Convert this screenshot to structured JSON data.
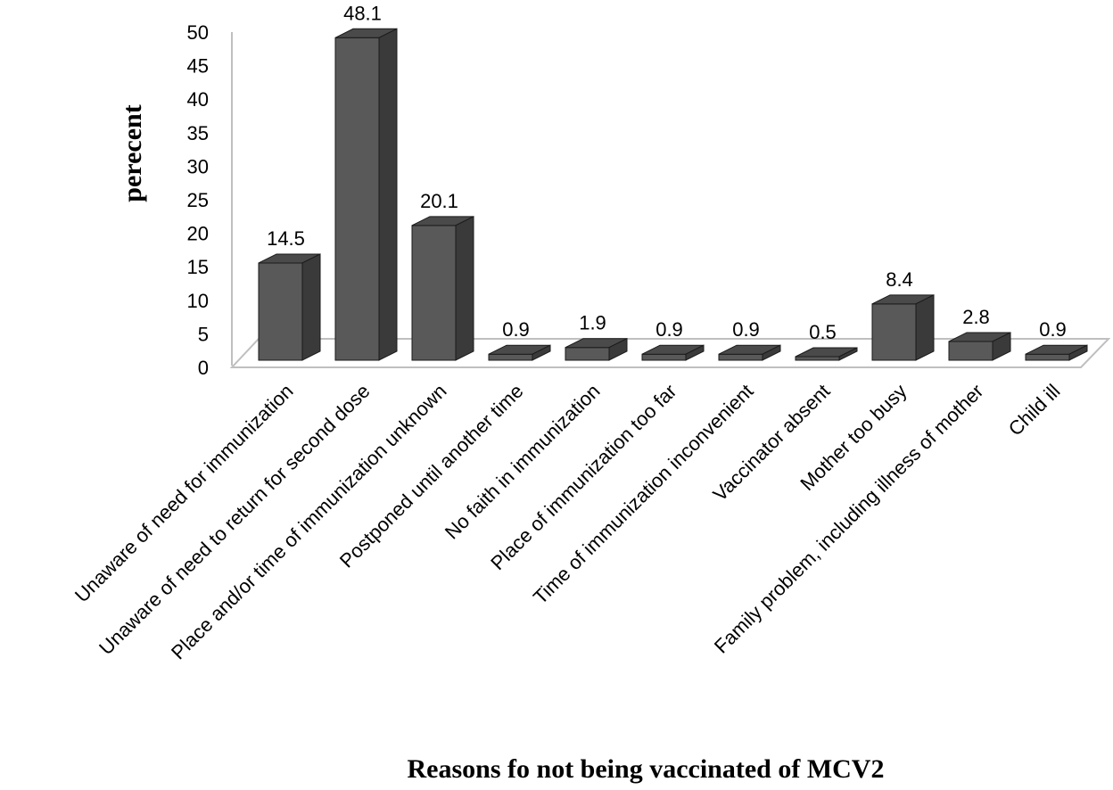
{
  "chart_data": {
    "type": "bar",
    "title": "",
    "xlabel": "Reasons fo not being vaccinated of MCV2",
    "ylabel": "perecent",
    "ylim": [
      0,
      50
    ],
    "yticks": [
      0,
      5,
      10,
      15,
      20,
      25,
      30,
      35,
      40,
      45,
      50
    ],
    "grid": false,
    "legend": "none",
    "bar_color": "#595959",
    "categories": [
      "Unaware of need for immunization",
      "Unaware of need to return for second dose",
      "Place and/or time of immunization unknown",
      "Postponed until another time",
      "No faith in immunization",
      "Place of immunization too far",
      "Time of immunization inconvenient",
      "Vaccinator absent",
      "Mother too busy",
      "Family problem, including illness of mother",
      "Child ill"
    ],
    "values": [
      14.5,
      48.1,
      20.1,
      0.9,
      1.9,
      0.9,
      0.9,
      0.5,
      8.4,
      2.8,
      0.9
    ],
    "data_labels": [
      "14.5",
      "48.1",
      "20.1",
      "0.9",
      "1.9",
      "0.9",
      "0.9",
      "0.5",
      "8.4",
      "2.8",
      "0.9"
    ]
  }
}
